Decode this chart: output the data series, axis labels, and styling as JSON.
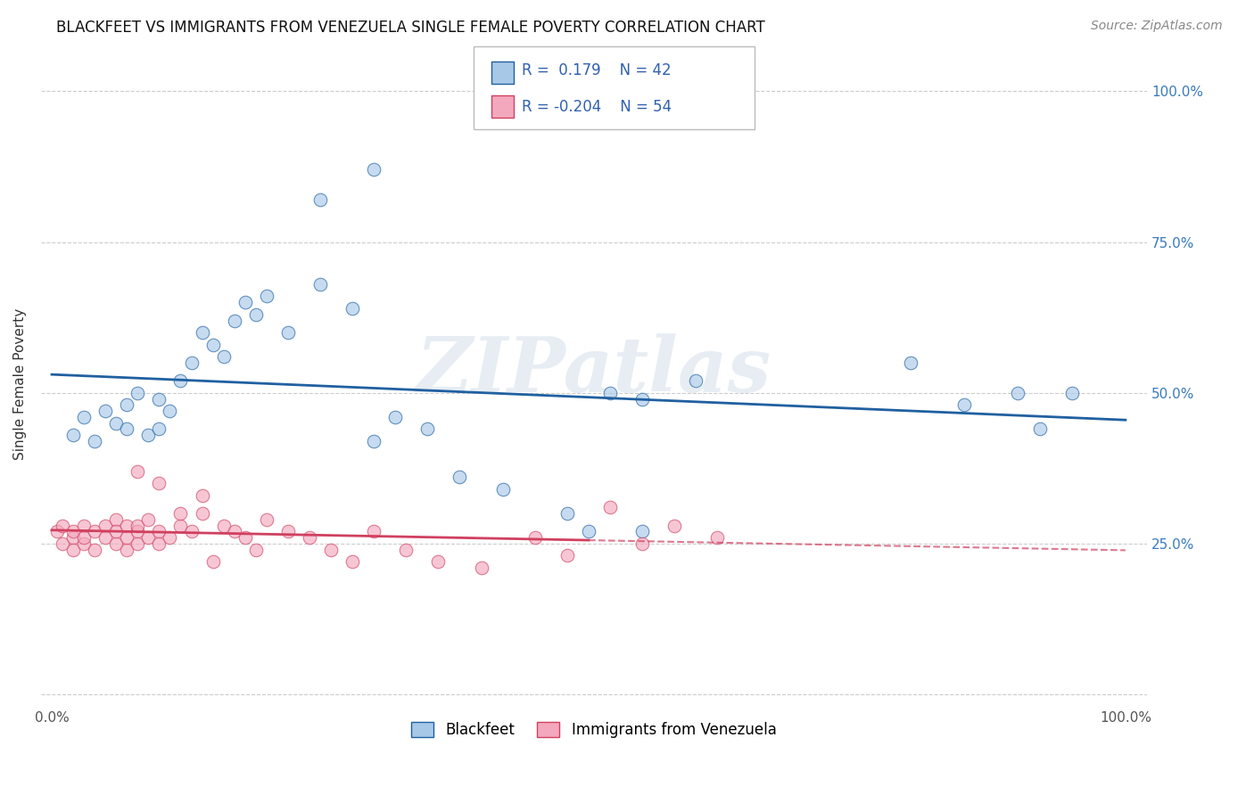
{
  "title": "BLACKFEET VS IMMIGRANTS FROM VENEZUELA SINGLE FEMALE POVERTY CORRELATION CHART",
  "source": "Source: ZipAtlas.com",
  "ylabel": "Single Female Poverty",
  "R_blue": 0.179,
  "N_blue": 42,
  "R_pink": -0.204,
  "N_pink": 54,
  "blue_color": "#a8c8e8",
  "pink_color": "#f4a8be",
  "blue_line_color": "#2060a0",
  "pink_line_color": "#d04060",
  "background_color": "#ffffff",
  "watermark": "ZIPatlas",
  "legend_label_blue": "Blackfeet",
  "legend_label_pink": "Immigrants from Venezuela",
  "blue_x": [
    0.02,
    0.03,
    0.04,
    0.05,
    0.06,
    0.07,
    0.07,
    0.08,
    0.09,
    0.1,
    0.1,
    0.11,
    0.12,
    0.13,
    0.14,
    0.15,
    0.16,
    0.17,
    0.18,
    0.19,
    0.2,
    0.22,
    0.25,
    0.28,
    0.3,
    0.32,
    0.35,
    0.38,
    0.42,
    0.48,
    0.52,
    0.55,
    0.6,
    0.8,
    0.85,
    0.9,
    0.92,
    0.95,
    0.5,
    0.55,
    0.25,
    0.3
  ],
  "blue_y": [
    0.43,
    0.46,
    0.42,
    0.47,
    0.45,
    0.44,
    0.48,
    0.5,
    0.43,
    0.44,
    0.49,
    0.47,
    0.52,
    0.55,
    0.6,
    0.58,
    0.56,
    0.62,
    0.65,
    0.63,
    0.66,
    0.6,
    0.68,
    0.64,
    0.42,
    0.46,
    0.44,
    0.36,
    0.34,
    0.3,
    0.5,
    0.49,
    0.52,
    0.55,
    0.48,
    0.5,
    0.44,
    0.5,
    0.27,
    0.27,
    0.82,
    0.87
  ],
  "pink_x": [
    0.005,
    0.01,
    0.01,
    0.02,
    0.02,
    0.02,
    0.03,
    0.03,
    0.03,
    0.04,
    0.04,
    0.05,
    0.05,
    0.06,
    0.06,
    0.06,
    0.07,
    0.07,
    0.07,
    0.08,
    0.08,
    0.08,
    0.09,
    0.09,
    0.1,
    0.1,
    0.11,
    0.12,
    0.12,
    0.13,
    0.14,
    0.14,
    0.15,
    0.16,
    0.17,
    0.18,
    0.19,
    0.2,
    0.22,
    0.24,
    0.26,
    0.28,
    0.3,
    0.33,
    0.36,
    0.4,
    0.45,
    0.48,
    0.52,
    0.55,
    0.58,
    0.62,
    0.08,
    0.1
  ],
  "pink_y": [
    0.27,
    0.28,
    0.25,
    0.26,
    0.27,
    0.24,
    0.28,
    0.25,
    0.26,
    0.27,
    0.24,
    0.28,
    0.26,
    0.29,
    0.25,
    0.27,
    0.28,
    0.24,
    0.26,
    0.27,
    0.25,
    0.28,
    0.29,
    0.26,
    0.27,
    0.25,
    0.26,
    0.28,
    0.3,
    0.27,
    0.33,
    0.3,
    0.22,
    0.28,
    0.27,
    0.26,
    0.24,
    0.29,
    0.27,
    0.26,
    0.24,
    0.22,
    0.27,
    0.24,
    0.22,
    0.21,
    0.26,
    0.23,
    0.31,
    0.25,
    0.28,
    0.26,
    0.37,
    0.35
  ]
}
